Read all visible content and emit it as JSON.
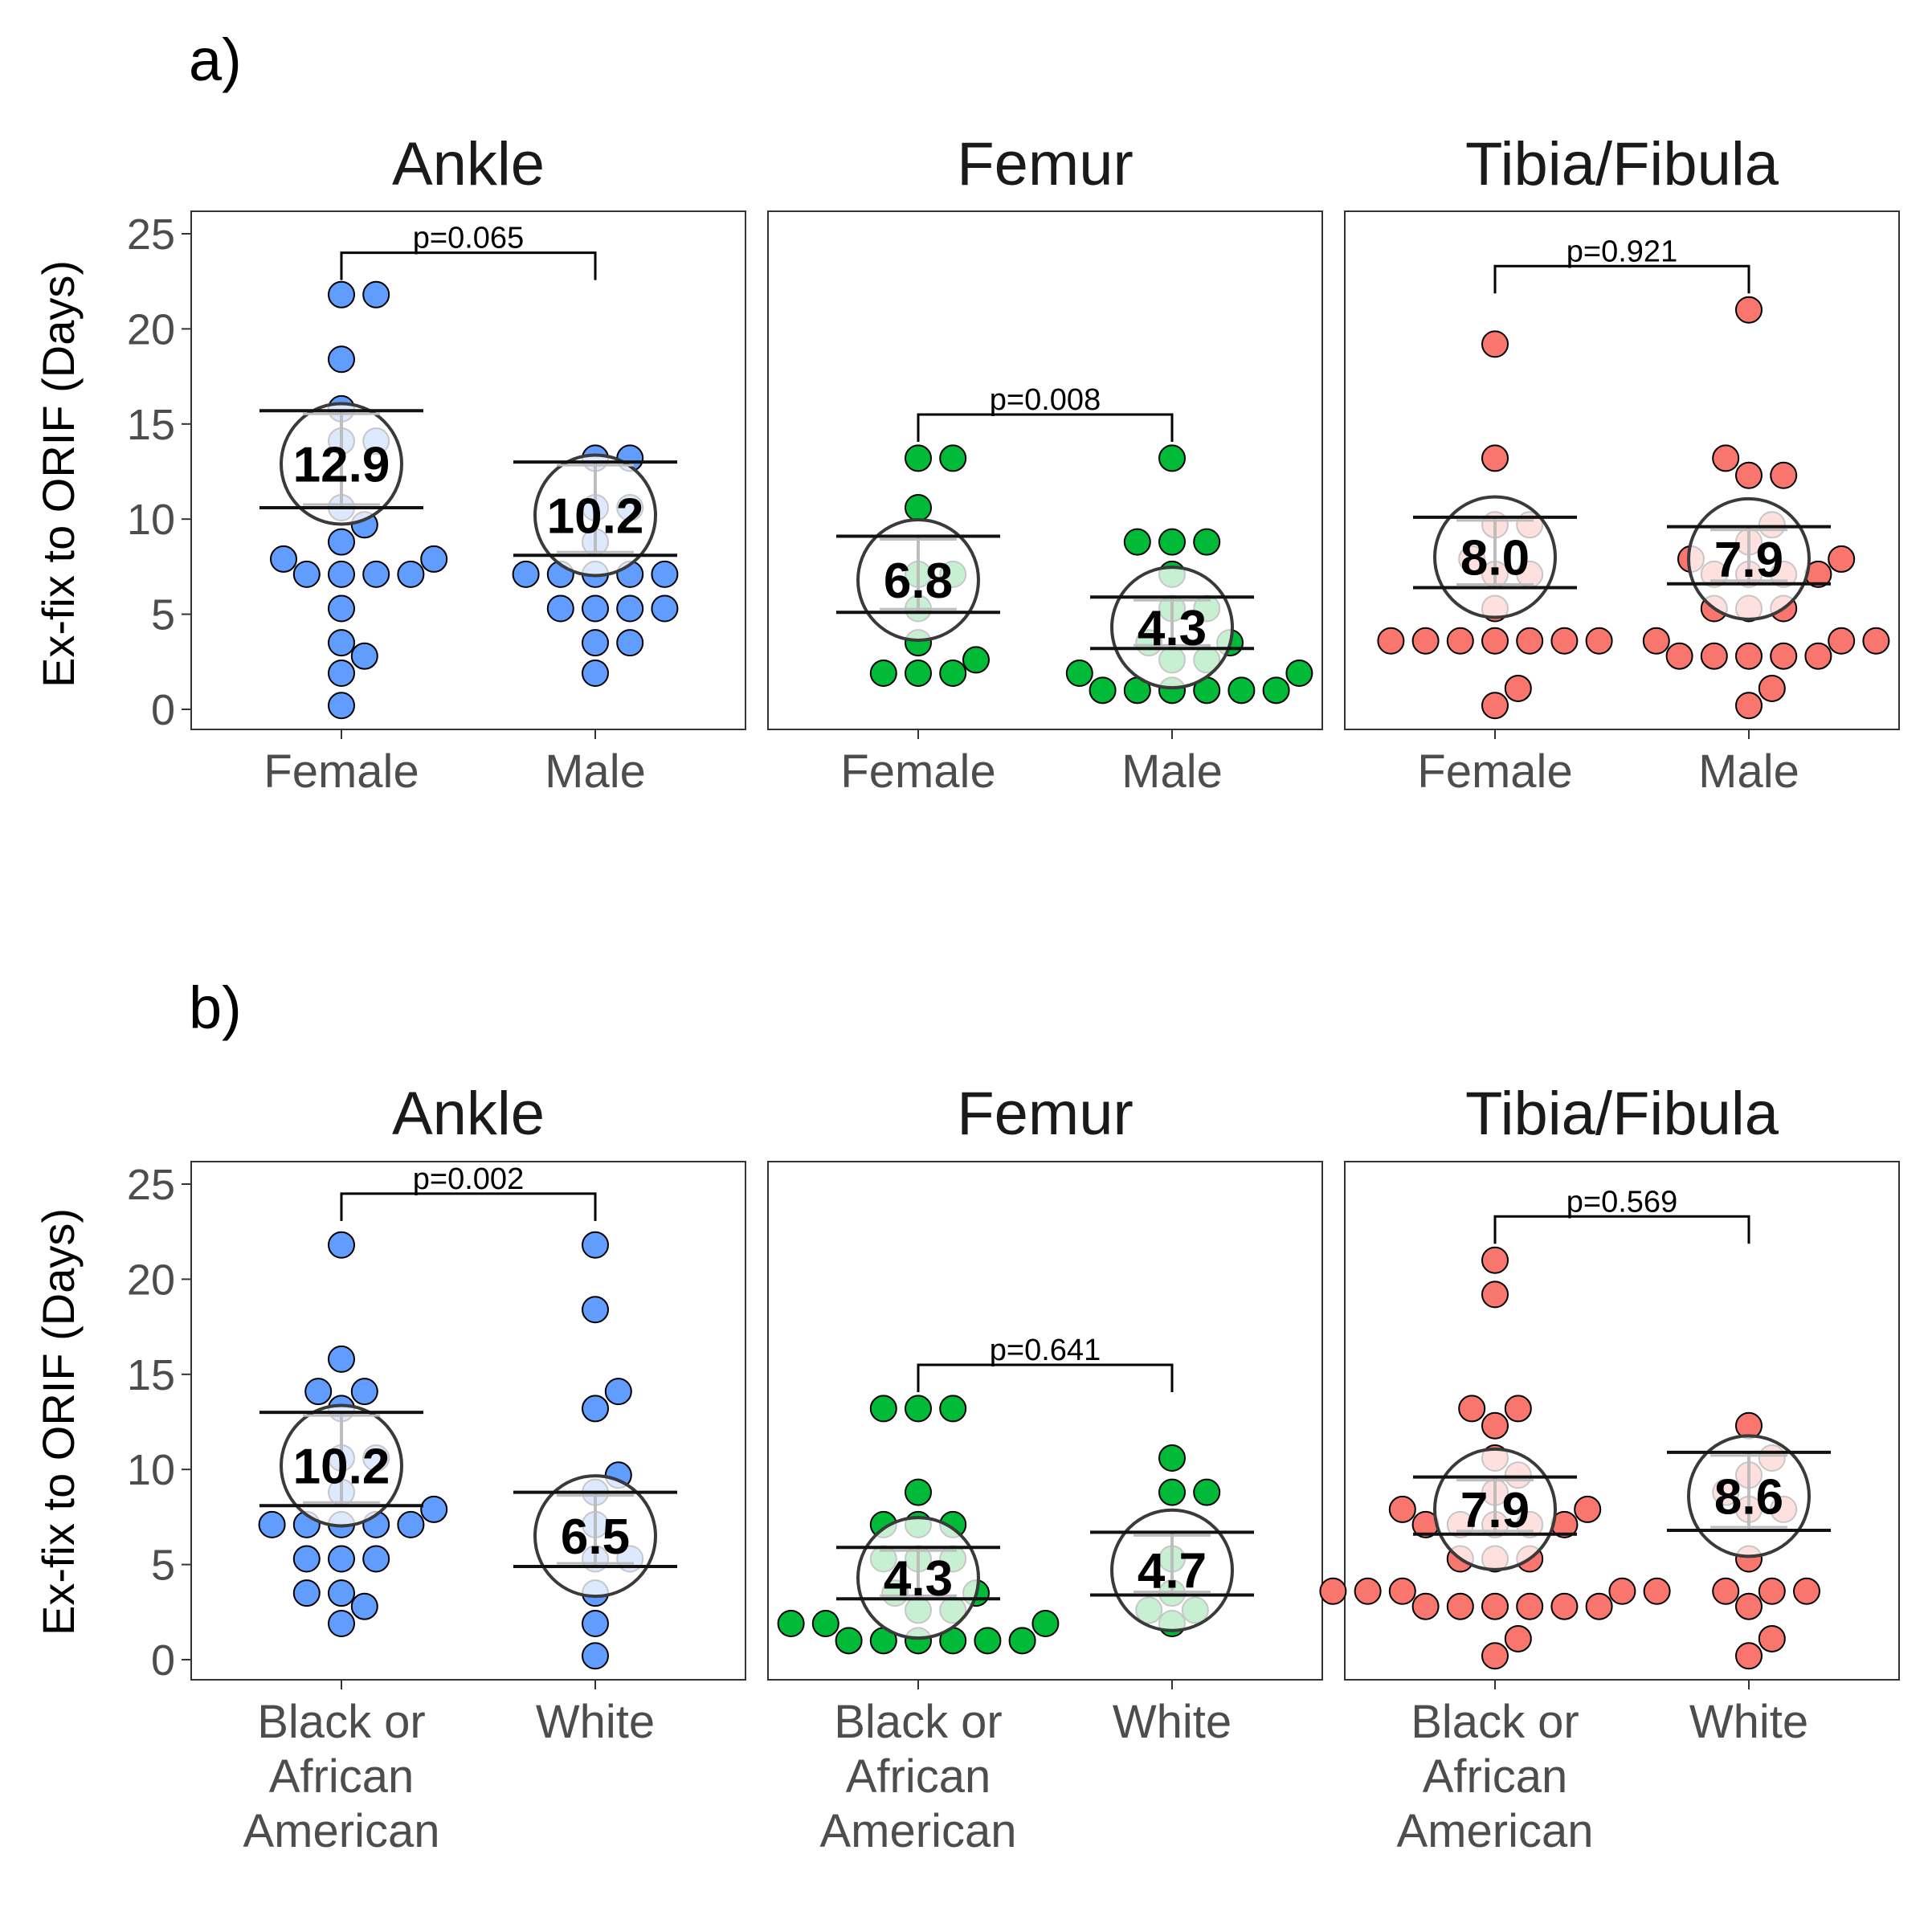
{
  "rows": [
    {
      "label": "a)",
      "y_axis_label": "Ex-fix to ORIF (Days)"
    },
    {
      "label": "b)",
      "y_axis_label": "Ex-fix to ORIF (Days)"
    }
  ],
  "chart_data": [
    {
      "type": "scatter",
      "row": "a)",
      "title": "Ankle",
      "ylabel": "Ex-fix to ORIF (Days)",
      "ylim": [
        0,
        25
      ],
      "yticks": [
        0,
        5,
        10,
        15,
        20,
        25
      ],
      "color": "#619CFF",
      "categories": [
        [
          "Female"
        ],
        [
          "Male"
        ]
      ],
      "groups": [
        {
          "name": "Female",
          "mean": 12.9,
          "mean_label": "12.9",
          "ci": [
            10.6,
            15.7
          ],
          "values": [
            21.8,
            21.8,
            18.4,
            15.8,
            14.1,
            14.1,
            10.6,
            9.7,
            8.8,
            7.9,
            7.9,
            7.1,
            7.1,
            7.1,
            7.1,
            5.3,
            3.5,
            2.8,
            1.9,
            0.2
          ]
        },
        {
          "name": "Male",
          "mean": 10.2,
          "mean_label": "10.2",
          "ci": [
            8.1,
            13.0
          ],
          "values": [
            13.2,
            13.2,
            10.6,
            10.6,
            8.8,
            7.1,
            7.1,
            7.1,
            7.1,
            7.1,
            5.3,
            5.3,
            5.3,
            5.3,
            3.5,
            3.5,
            1.9
          ]
        }
      ],
      "comparison": {
        "label": "p=0.065",
        "y": 24.0
      }
    },
    {
      "type": "scatter",
      "row": "a)",
      "title": "Femur",
      "ylabel": "Ex-fix to ORIF (Days)",
      "ylim": [
        0,
        25
      ],
      "yticks": [
        0,
        5,
        10,
        15,
        20,
        25
      ],
      "color": "#00BA38",
      "categories": [
        [
          "Female"
        ],
        [
          "Male"
        ]
      ],
      "groups": [
        {
          "name": "Female",
          "mean": 6.8,
          "mean_label": "6.8",
          "ci": [
            5.1,
            9.1
          ],
          "values": [
            13.2,
            13.2,
            10.6,
            7.1,
            7.1,
            5.3,
            3.5,
            2.6,
            1.9,
            1.9,
            1.9
          ]
        },
        {
          "name": "Male",
          "mean": 4.3,
          "mean_label": "4.3",
          "ci": [
            3.2,
            5.9
          ],
          "values": [
            13.2,
            8.8,
            8.8,
            8.8,
            7.1,
            5.3,
            5.3,
            3.5,
            3.5,
            2.6,
            2.6,
            1.9,
            1.9,
            1.0,
            1.0,
            1.0,
            1.0,
            1.0,
            1.0
          ]
        }
      ],
      "comparison": {
        "label": "p=0.008",
        "y": 15.5
      }
    },
    {
      "type": "scatter",
      "row": "a)",
      "title": "Tibia/Fibula",
      "ylabel": "Ex-fix to ORIF (Days)",
      "ylim": [
        0,
        25
      ],
      "yticks": [
        0,
        5,
        10,
        15,
        20,
        25
      ],
      "color": "#F8766D",
      "categories": [
        [
          "Female"
        ],
        [
          "Male"
        ]
      ],
      "groups": [
        {
          "name": "Female",
          "mean": 8.0,
          "mean_label": "8.0",
          "ci": [
            6.4,
            10.1
          ],
          "values": [
            19.2,
            13.2,
            9.7,
            9.7,
            7.9,
            7.1,
            7.1,
            5.3,
            3.6,
            3.6,
            3.6,
            3.6,
            3.6,
            3.6,
            3.6,
            1.1,
            0.2
          ]
        },
        {
          "name": "Male",
          "mean": 7.9,
          "mean_label": "7.9",
          "ci": [
            6.6,
            9.6
          ],
          "values": [
            21.0,
            13.2,
            12.3,
            12.3,
            9.7,
            8.8,
            7.9,
            7.9,
            7.1,
            7.1,
            7.1,
            7.1,
            5.3,
            5.3,
            5.3,
            3.6,
            3.6,
            3.6,
            2.8,
            2.8,
            2.8,
            2.8,
            2.8,
            1.1,
            0.2
          ]
        }
      ],
      "comparison": {
        "label": "p=0.921",
        "y": 23.3
      }
    },
    {
      "type": "scatter",
      "row": "b)",
      "title": "Ankle",
      "ylabel": "Ex-fix to ORIF (Days)",
      "ylim": [
        0,
        25
      ],
      "yticks": [
        0,
        5,
        10,
        15,
        20,
        25
      ],
      "color": "#619CFF",
      "categories": [
        [
          "Black or",
          "African",
          "American"
        ],
        [
          "White"
        ]
      ],
      "groups": [
        {
          "name": "Black or African American",
          "mean": 10.2,
          "mean_label": "10.2",
          "ci": [
            8.1,
            13.0
          ],
          "values": [
            21.8,
            15.8,
            14.1,
            14.1,
            13.2,
            10.6,
            10.6,
            8.8,
            7.9,
            7.1,
            7.1,
            7.1,
            7.1,
            7.1,
            5.3,
            5.3,
            5.3,
            3.5,
            3.5,
            2.8,
            1.9
          ]
        },
        {
          "name": "White",
          "mean": 6.5,
          "mean_label": "6.5",
          "ci": [
            4.9,
            8.8
          ],
          "values": [
            21.8,
            18.4,
            14.1,
            13.2,
            9.7,
            8.8,
            7.1,
            5.3,
            5.3,
            3.5,
            1.9,
            0.2
          ]
        }
      ],
      "comparison": {
        "label": "p=0.002",
        "y": 24.5
      }
    },
    {
      "type": "scatter",
      "row": "b)",
      "title": "Femur",
      "ylabel": "Ex-fix to ORIF (Days)",
      "ylim": [
        0,
        25
      ],
      "yticks": [
        0,
        5,
        10,
        15,
        20,
        25
      ],
      "color": "#00BA38",
      "categories": [
        [
          "Black or",
          "African",
          "American"
        ],
        [
          "White"
        ]
      ],
      "groups": [
        {
          "name": "Black or African American",
          "mean": 4.3,
          "mean_label": "4.3",
          "ci": [
            3.2,
            5.9
          ],
          "values": [
            13.2,
            13.2,
            13.2,
            8.8,
            7.1,
            7.1,
            7.1,
            5.3,
            5.3,
            5.3,
            3.5,
            3.5,
            2.6,
            2.6,
            1.9,
            1.9,
            1.9,
            1.0,
            1.0,
            1.0,
            1.0,
            1.0,
            1.0
          ]
        },
        {
          "name": "White",
          "mean": 4.7,
          "mean_label": "4.7",
          "ci": [
            3.4,
            6.7
          ],
          "values": [
            10.6,
            8.8,
            8.8,
            5.3,
            3.5,
            2.6,
            2.6,
            1.9
          ]
        }
      ],
      "comparison": {
        "label": "p=0.641",
        "y": 15.5
      }
    },
    {
      "type": "scatter",
      "row": "b)",
      "title": "Tibia/Fibula",
      "ylabel": "Ex-fix to ORIF (Days)",
      "ylim": [
        0,
        25
      ],
      "yticks": [
        0,
        5,
        10,
        15,
        20,
        25
      ],
      "color": "#F8766D",
      "categories": [
        [
          "Black or",
          "African",
          "American"
        ],
        [
          "White"
        ]
      ],
      "groups": [
        {
          "name": "Black or African American",
          "mean": 7.9,
          "mean_label": "7.9",
          "ci": [
            6.6,
            9.6
          ],
          "values": [
            21.0,
            19.2,
            13.2,
            13.2,
            12.3,
            10.6,
            9.7,
            8.8,
            7.9,
            7.9,
            7.1,
            7.1,
            7.1,
            7.1,
            7.1,
            5.3,
            5.3,
            5.3,
            3.6,
            3.6,
            3.6,
            3.6,
            3.6,
            2.8,
            2.8,
            2.8,
            2.8,
            2.8,
            2.8,
            1.1,
            0.2
          ]
        },
        {
          "name": "White",
          "mean": 8.6,
          "mean_label": "8.6",
          "ci": [
            6.8,
            10.9
          ],
          "values": [
            12.3,
            10.6,
            9.7,
            8.8,
            7.9,
            7.9,
            5.3,
            3.6,
            3.6,
            3.6,
            2.8,
            1.1,
            0.2
          ]
        }
      ],
      "comparison": {
        "label": "p=0.569",
        "y": 23.3
      }
    }
  ]
}
